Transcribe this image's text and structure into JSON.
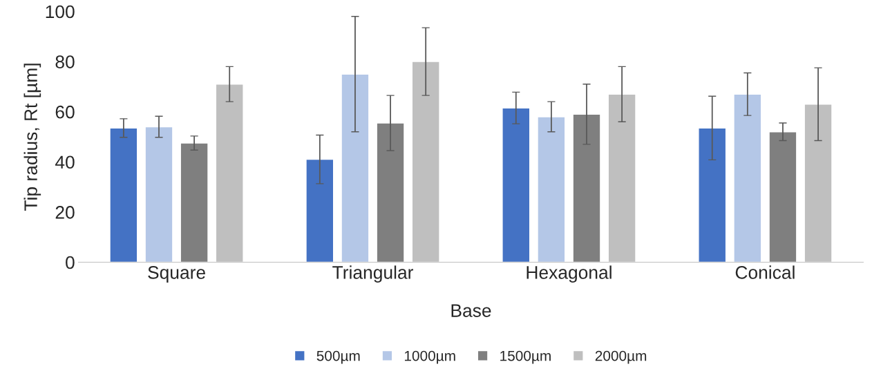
{
  "chart_data": {
    "type": "bar",
    "xlabel": "Base",
    "ylabel": "Tip radius, Rt [µm]",
    "categories": [
      "Square",
      "Triangular",
      "Hexagonal",
      "Conical"
    ],
    "series": [
      {
        "name": "500µm",
        "color": "#4472c4",
        "values": [
          53.5,
          41,
          61.5,
          53.5
        ],
        "errors": [
          3.7,
          9.7,
          6.3,
          12.7
        ]
      },
      {
        "name": "1000µm",
        "color": "#b4c7e7",
        "values": [
          54,
          75,
          58,
          67
        ],
        "errors": [
          4.2,
          23,
          6,
          8.5
        ]
      },
      {
        "name": "1500µm",
        "color": "#7f7f7f",
        "values": [
          47.5,
          55.5,
          59,
          52
        ],
        "errors": [
          2.8,
          11,
          12,
          3.5
        ]
      },
      {
        "name": "2000µm",
        "color": "#bfbfbf",
        "values": [
          71,
          80,
          67,
          63
        ],
        "errors": [
          7,
          13.5,
          11,
          14.5
        ]
      }
    ],
    "ylim": [
      0,
      100
    ],
    "yticks": [
      0,
      20,
      40,
      60,
      80,
      100
    ],
    "grid": false,
    "legend": "bottom"
  }
}
